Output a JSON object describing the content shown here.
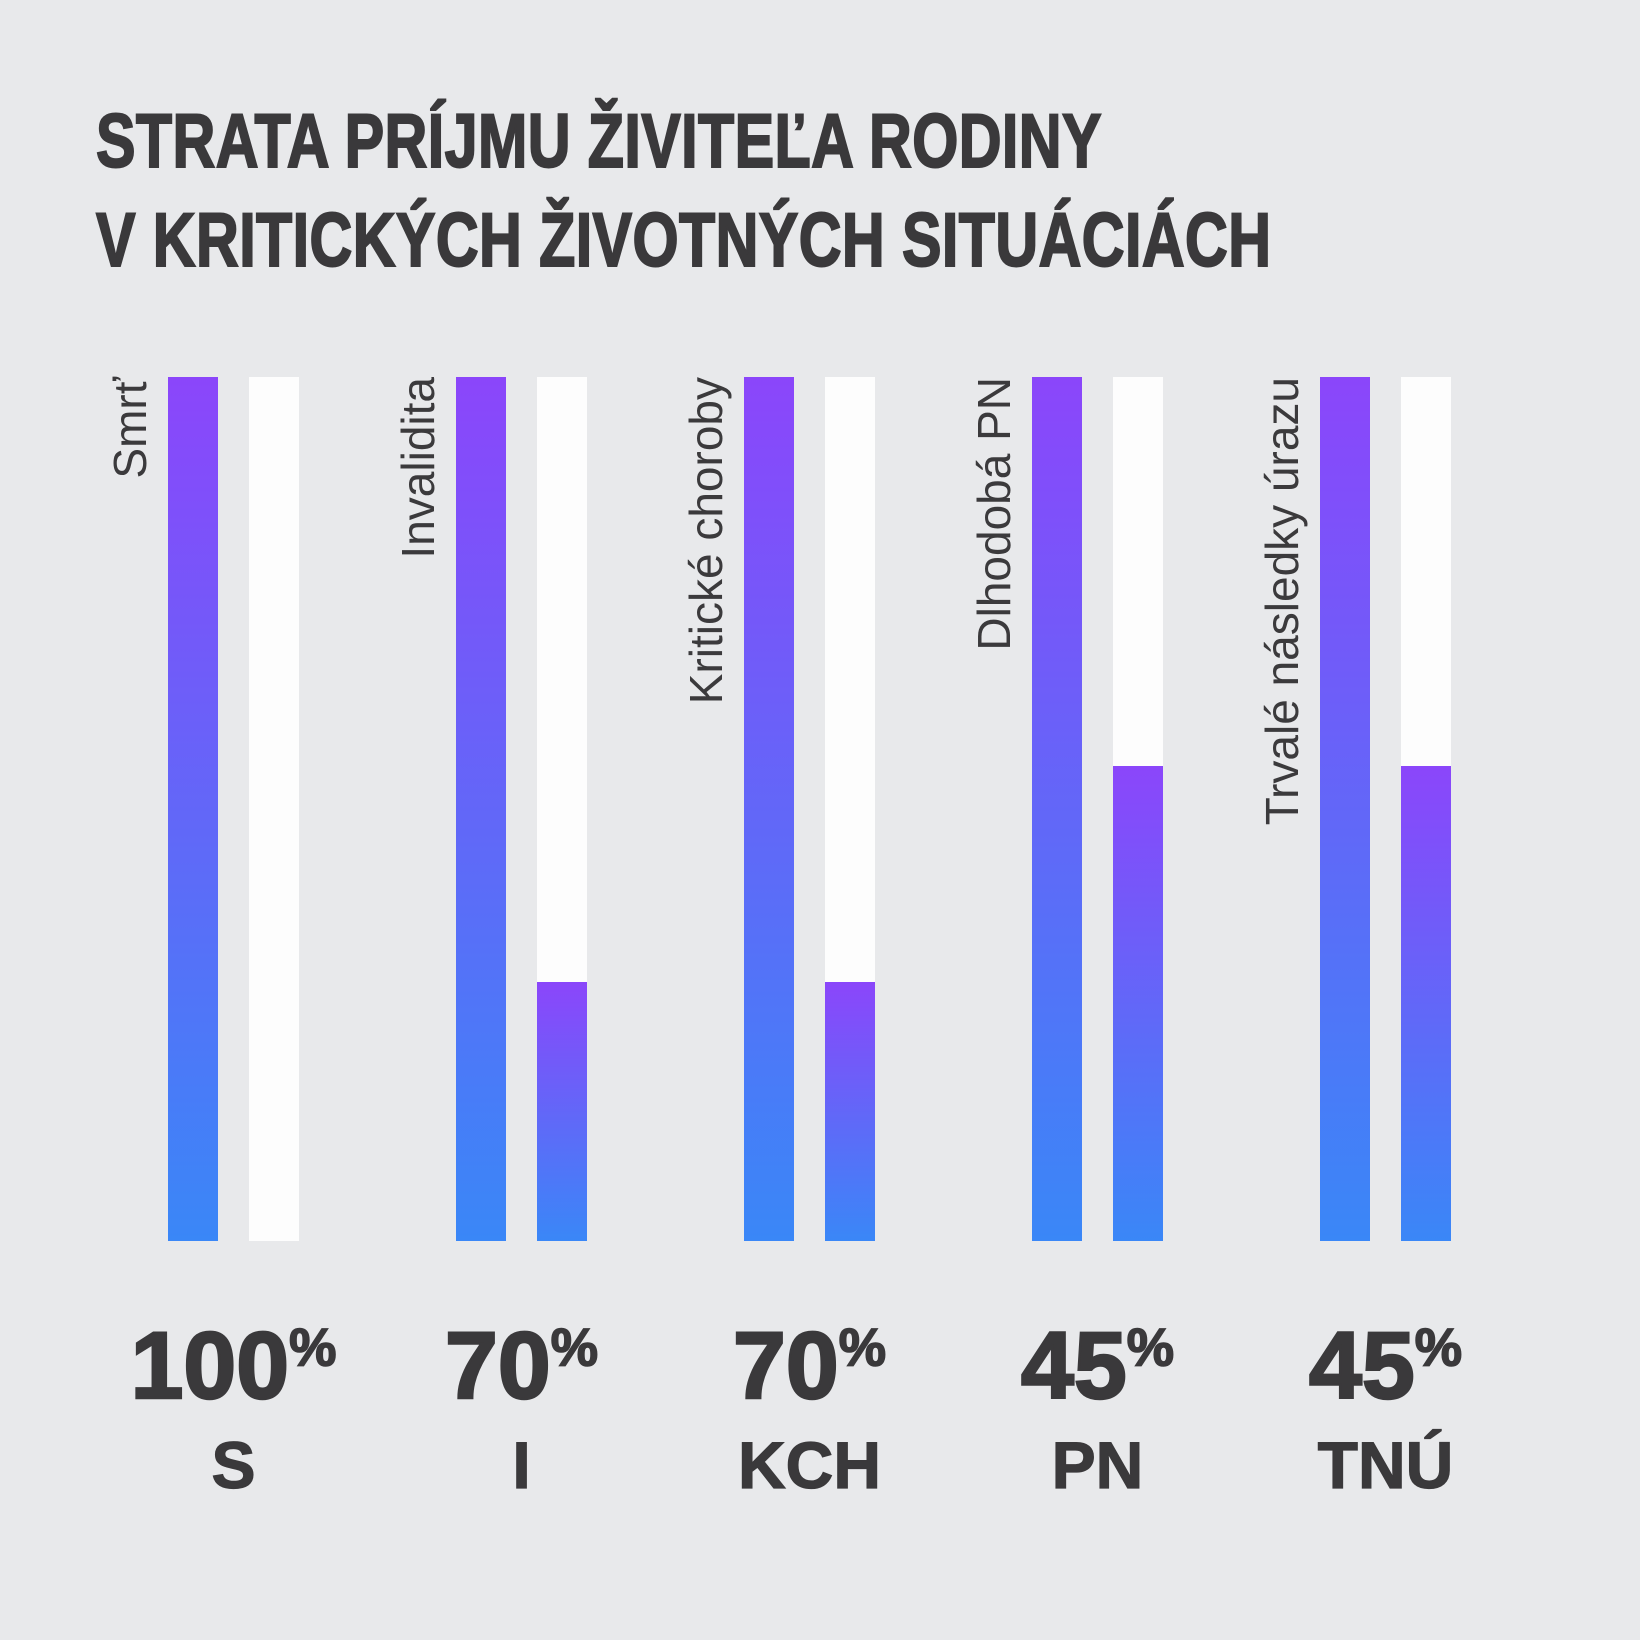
{
  "title": {
    "line1": "STRATA PRÍJMU ŽIVITEĽA RODINY",
    "line2": "V KRITICKÝCH ŽIVOTNÝCH SITUÁCIÁCH"
  },
  "percent_symbol": "%",
  "chart_data": {
    "type": "bar",
    "title": "STRATA PRÍJMU ŽIVITEĽA RODINY V KRITICKÝCH ŽIVOTNÝCH SITUÁCIÁCH",
    "ylim": [
      0,
      100
    ],
    "grid": false,
    "legend": false,
    "categories": [
      "Smrť",
      "Invalidita",
      "Kritické choroby",
      "Dlhodobá PN",
      "Trvalé následky úrazu"
    ],
    "groups": [
      {
        "label": "Smrť",
        "code": "S",
        "pct_value": "100",
        "loss_pct": 100,
        "bar_full_pct": 100,
        "bar_remaining_pct": 0
      },
      {
        "label": "Invalidita",
        "code": "I",
        "pct_value": "70",
        "loss_pct": 70,
        "bar_full_pct": 100,
        "bar_remaining_pct": 30
      },
      {
        "label": "Kritické choroby",
        "code": "KCH",
        "pct_value": "70",
        "loss_pct": 70,
        "bar_full_pct": 100,
        "bar_remaining_pct": 30
      },
      {
        "label": "Dlhodobá PN",
        "code": "PN",
        "pct_value": "45",
        "loss_pct": 45,
        "bar_full_pct": 100,
        "bar_remaining_pct": 55
      },
      {
        "label": "Trvalé následky úrazu",
        "code": "TNÚ",
        "pct_value": "45",
        "loss_pct": 45,
        "bar_full_pct": 100,
        "bar_remaining_pct": 55
      }
    ],
    "series": [
      {
        "name": "full-bar-left",
        "values": [
          100,
          100,
          100,
          100,
          100
        ]
      },
      {
        "name": "filled-portion-right-bar",
        "values": [
          0,
          30,
          30,
          55,
          55
        ]
      }
    ]
  },
  "colors": {
    "background": "#e8e9eb",
    "bar_gradient_top": "#8b46fa",
    "bar_gradient_bottom": "#3a87f7",
    "bar_track_white": "#fdfdfd",
    "text": "#3a393b"
  }
}
